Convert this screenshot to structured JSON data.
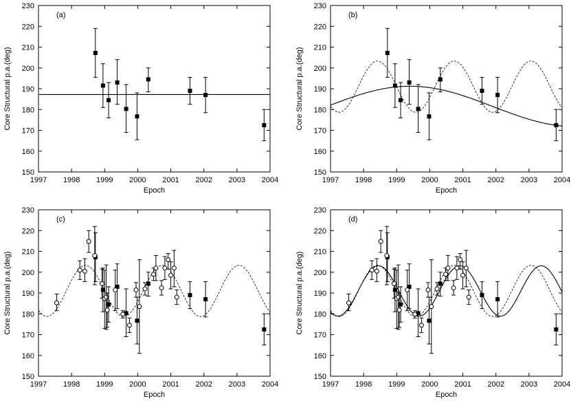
{
  "chart_data": [
    {
      "panel": "(a)",
      "type": "scatter",
      "xlabel": "Epoch",
      "ylabel": "Core Structural p.a.(deg)",
      "xlim": [
        1997,
        2004
      ],
      "ylim": [
        150,
        230
      ],
      "xticks": [
        "1997",
        "1998",
        "1999",
        "2000",
        "2001",
        "2002",
        "2003",
        "2004"
      ],
      "yticks": [
        "150",
        "160",
        "170",
        "180",
        "190",
        "200",
        "210",
        "220",
        "230"
      ],
      "series": [
        {
          "name": "squares",
          "marker": "square",
          "points": [
            {
              "x": 1998.72,
              "y": 207.2,
              "lo": 195.5,
              "hi": 219.0
            },
            {
              "x": 1998.95,
              "y": 191.5,
              "lo": 181.0,
              "hi": 202.0
            },
            {
              "x": 1999.12,
              "y": 184.5,
              "lo": 176.0,
              "hi": 193.0
            },
            {
              "x": 1999.38,
              "y": 193.0,
              "lo": 182.5,
              "hi": 204.0
            },
            {
              "x": 1999.65,
              "y": 180.3,
              "lo": 169.0,
              "hi": 192.0
            },
            {
              "x": 1999.98,
              "y": 176.7,
              "lo": 165.5,
              "hi": 188.0
            },
            {
              "x": 2000.32,
              "y": 194.5,
              "lo": 188.5,
              "hi": 200.0
            },
            {
              "x": 2001.58,
              "y": 189.0,
              "lo": 182.5,
              "hi": 195.5
            },
            {
              "x": 2002.05,
              "y": 187.0,
              "lo": 178.5,
              "hi": 195.5
            },
            {
              "x": 2003.82,
              "y": 172.5,
              "lo": 165.0,
              "hi": 180.0
            }
          ]
        }
      ],
      "curves": [
        {
          "name": "mean",
          "kind": "constant",
          "value": 187.2,
          "style": "solid"
        }
      ]
    },
    {
      "panel": "(b)",
      "type": "scatter",
      "xlabel": "Epoch",
      "ylabel": "Core Structural p.a.(deg)",
      "xlim": [
        1997,
        2004
      ],
      "ylim": [
        150,
        230
      ],
      "xticks": [
        "1997",
        "1998",
        "1999",
        "2000",
        "2001",
        "2002",
        "2003",
        "2004"
      ],
      "yticks": [
        "150",
        "160",
        "170",
        "180",
        "190",
        "200",
        "210",
        "220",
        "230"
      ],
      "series": [
        {
          "name": "squares",
          "marker": "square",
          "points": [
            {
              "x": 1998.72,
              "y": 207.2,
              "lo": 195.5,
              "hi": 219.0
            },
            {
              "x": 1998.95,
              "y": 191.5,
              "lo": 181.0,
              "hi": 202.0
            },
            {
              "x": 1999.12,
              "y": 184.5,
              "lo": 176.0,
              "hi": 193.0
            },
            {
              "x": 1999.38,
              "y": 193.0,
              "lo": 182.5,
              "hi": 204.0
            },
            {
              "x": 1999.65,
              "y": 180.3,
              "lo": 169.0,
              "hi": 192.0
            },
            {
              "x": 1999.98,
              "y": 176.7,
              "lo": 165.5,
              "hi": 188.0
            },
            {
              "x": 2000.32,
              "y": 194.5,
              "lo": 188.5,
              "hi": 200.0
            },
            {
              "x": 2001.58,
              "y": 189.0,
              "lo": 182.5,
              "hi": 195.5
            },
            {
              "x": 2002.05,
              "y": 187.0,
              "lo": 178.5,
              "hi": 195.5
            },
            {
              "x": 2003.82,
              "y": 172.5,
              "lo": 165.0,
              "hi": 180.0
            }
          ]
        }
      ],
      "curves": [
        {
          "name": "long-period-fit",
          "kind": "sine",
          "mean": 181.5,
          "amplitude": 9.7,
          "period": 10.0,
          "peak": 1999.4,
          "style": "solid"
        },
        {
          "name": "short-period-fit",
          "kind": "sine",
          "mean": 191.0,
          "amplitude": 12.3,
          "period": 2.32,
          "peak": 1998.42,
          "style": "dashed"
        }
      ]
    },
    {
      "panel": "(c)",
      "type": "scatter",
      "xlabel": "Epoch",
      "ylabel": "Core Structural p.a.(deg)",
      "xlim": [
        1997,
        2004
      ],
      "ylim": [
        150,
        230
      ],
      "xticks": [
        "1997",
        "1998",
        "1999",
        "2000",
        "2001",
        "2002",
        "2003",
        "2004"
      ],
      "yticks": [
        "150",
        "160",
        "170",
        "180",
        "190",
        "200",
        "210",
        "220",
        "230"
      ],
      "series": [
        {
          "name": "squares",
          "marker": "square",
          "points": [
            {
              "x": 1998.72,
              "y": 207.2,
              "lo": 195.5,
              "hi": 219.0
            },
            {
              "x": 1998.95,
              "y": 191.5,
              "lo": 181.0,
              "hi": 202.0
            },
            {
              "x": 1999.12,
              "y": 184.5,
              "lo": 176.0,
              "hi": 193.0
            },
            {
              "x": 1999.38,
              "y": 193.0,
              "lo": 182.5,
              "hi": 204.0
            },
            {
              "x": 1999.65,
              "y": 180.3,
              "lo": 169.0,
              "hi": 192.0
            },
            {
              "x": 1999.98,
              "y": 176.7,
              "lo": 165.5,
              "hi": 188.0
            },
            {
              "x": 2000.32,
              "y": 194.5,
              "lo": 188.5,
              "hi": 200.0
            },
            {
              "x": 2001.58,
              "y": 189.0,
              "lo": 182.5,
              "hi": 195.5
            },
            {
              "x": 2002.05,
              "y": 187.0,
              "lo": 178.5,
              "hi": 195.5
            },
            {
              "x": 2003.82,
              "y": 172.5,
              "lo": 165.0,
              "hi": 180.0
            }
          ]
        },
        {
          "name": "circles",
          "marker": "circle",
          "points": [
            {
              "x": 1997.55,
              "y": 185.3,
              "lo": 181.5,
              "hi": 189.5
            },
            {
              "x": 1998.25,
              "y": 201.0,
              "lo": 196.5,
              "hi": 205.5
            },
            {
              "x": 1998.4,
              "y": 200.5,
              "lo": 195.5,
              "hi": 206.5
            },
            {
              "x": 1998.52,
              "y": 214.8,
              "lo": 209.5,
              "hi": 220.0
            },
            {
              "x": 1998.7,
              "y": 208.0,
              "lo": 194.0,
              "hi": 222.0
            },
            {
              "x": 1998.92,
              "y": 194.5,
              "lo": 187.5,
              "hi": 201.5
            },
            {
              "x": 1999.0,
              "y": 187.3,
              "lo": 173.0,
              "hi": 201.0
            },
            {
              "x": 1999.05,
              "y": 188.0,
              "lo": 172.5,
              "hi": 203.5
            },
            {
              "x": 1999.08,
              "y": 181.8,
              "lo": 173.5,
              "hi": 190.0
            },
            {
              "x": 1999.32,
              "y": 191.5,
              "lo": 181.5,
              "hi": 201.0
            },
            {
              "x": 1999.55,
              "y": 179.8,
              "lo": 178.0,
              "hi": 181.5
            },
            {
              "x": 1999.75,
              "y": 174.5,
              "lo": 171.0,
              "hi": 178.0
            },
            {
              "x": 1999.95,
              "y": 191.5,
              "lo": 188.0,
              "hi": 195.0
            },
            {
              "x": 2000.05,
              "y": 183.5,
              "lo": 161.0,
              "hi": 206.0
            },
            {
              "x": 2000.22,
              "y": 192.0,
              "lo": 189.0,
              "hi": 195.0
            },
            {
              "x": 2000.48,
              "y": 199.0,
              "lo": 196.0,
              "hi": 202.0
            },
            {
              "x": 2000.55,
              "y": 202.0,
              "lo": 196.0,
              "hi": 208.0
            },
            {
              "x": 2000.72,
              "y": 192.5,
              "lo": 189.0,
              "hi": 196.0
            },
            {
              "x": 2000.82,
              "y": 202.0,
              "lo": 196.5,
              "hi": 207.5
            },
            {
              "x": 2000.92,
              "y": 206.0,
              "lo": 201.5,
              "hi": 209.0
            },
            {
              "x": 2001.0,
              "y": 198.5,
              "lo": 192.0,
              "hi": 205.0
            },
            {
              "x": 2001.1,
              "y": 202.0,
              "lo": 193.0,
              "hi": 210.5
            },
            {
              "x": 2001.18,
              "y": 188.0,
              "lo": 184.5,
              "hi": 191.5
            }
          ]
        }
      ],
      "curves": [
        {
          "name": "short-period-fit",
          "kind": "sine",
          "mean": 191.0,
          "amplitude": 12.3,
          "period": 2.32,
          "peak": 1998.42,
          "style": "dashed"
        }
      ]
    },
    {
      "panel": "(d)",
      "type": "scatter",
      "xlabel": "Epoch",
      "ylabel": "Core Structural p.a.(deg)",
      "xlim": [
        1997,
        2004
      ],
      "ylim": [
        150,
        230
      ],
      "xticks": [
        "1997",
        "1998",
        "1999",
        "2000",
        "2001",
        "2002",
        "2003",
        "2004"
      ],
      "yticks": [
        "150",
        "160",
        "170",
        "180",
        "190",
        "200",
        "210",
        "220",
        "230"
      ],
      "series": [
        {
          "name": "squares",
          "marker": "square",
          "points": [
            {
              "x": 1998.72,
              "y": 207.2,
              "lo": 195.5,
              "hi": 219.0
            },
            {
              "x": 1998.95,
              "y": 191.5,
              "lo": 181.0,
              "hi": 202.0
            },
            {
              "x": 1999.12,
              "y": 184.5,
              "lo": 176.0,
              "hi": 193.0
            },
            {
              "x": 1999.38,
              "y": 193.0,
              "lo": 182.5,
              "hi": 204.0
            },
            {
              "x": 1999.65,
              "y": 180.3,
              "lo": 169.0,
              "hi": 192.0
            },
            {
              "x": 1999.98,
              "y": 176.7,
              "lo": 165.5,
              "hi": 188.0
            },
            {
              "x": 2000.32,
              "y": 194.5,
              "lo": 188.5,
              "hi": 200.0
            },
            {
              "x": 2001.58,
              "y": 189.0,
              "lo": 182.5,
              "hi": 195.5
            },
            {
              "x": 2002.05,
              "y": 187.0,
              "lo": 178.5,
              "hi": 195.5
            },
            {
              "x": 2003.82,
              "y": 172.5,
              "lo": 165.0,
              "hi": 180.0
            }
          ]
        },
        {
          "name": "circles",
          "marker": "circle",
          "points": [
            {
              "x": 1997.55,
              "y": 185.3,
              "lo": 181.5,
              "hi": 189.5
            },
            {
              "x": 1998.25,
              "y": 201.0,
              "lo": 196.5,
              "hi": 205.5
            },
            {
              "x": 1998.4,
              "y": 200.5,
              "lo": 195.5,
              "hi": 206.5
            },
            {
              "x": 1998.52,
              "y": 214.8,
              "lo": 209.5,
              "hi": 220.0
            },
            {
              "x": 1998.7,
              "y": 208.0,
              "lo": 194.0,
              "hi": 222.0
            },
            {
              "x": 1998.92,
              "y": 194.5,
              "lo": 187.5,
              "hi": 201.5
            },
            {
              "x": 1999.0,
              "y": 187.3,
              "lo": 173.0,
              "hi": 201.0
            },
            {
              "x": 1999.05,
              "y": 188.0,
              "lo": 172.5,
              "hi": 203.5
            },
            {
              "x": 1999.08,
              "y": 181.8,
              "lo": 173.5,
              "hi": 190.0
            },
            {
              "x": 1999.32,
              "y": 191.5,
              "lo": 181.5,
              "hi": 201.0
            },
            {
              "x": 1999.55,
              "y": 179.8,
              "lo": 178.0,
              "hi": 181.5
            },
            {
              "x": 1999.75,
              "y": 174.5,
              "lo": 171.0,
              "hi": 178.0
            },
            {
              "x": 1999.95,
              "y": 191.5,
              "lo": 188.0,
              "hi": 195.0
            },
            {
              "x": 2000.05,
              "y": 183.5,
              "lo": 161.0,
              "hi": 206.0
            },
            {
              "x": 2000.22,
              "y": 192.0,
              "lo": 189.0,
              "hi": 195.0
            },
            {
              "x": 2000.48,
              "y": 199.0,
              "lo": 196.0,
              "hi": 202.0
            },
            {
              "x": 2000.55,
              "y": 202.0,
              "lo": 196.0,
              "hi": 208.0
            },
            {
              "x": 2000.72,
              "y": 192.5,
              "lo": 189.0,
              "hi": 196.0
            },
            {
              "x": 2000.82,
              "y": 202.0,
              "lo": 196.5,
              "hi": 207.5
            },
            {
              "x": 2000.92,
              "y": 206.0,
              "lo": 201.5,
              "hi": 209.0
            },
            {
              "x": 2001.0,
              "y": 198.5,
              "lo": 192.0,
              "hi": 205.0
            },
            {
              "x": 2001.1,
              "y": 202.0,
              "lo": 193.0,
              "hi": 210.5
            },
            {
              "x": 2001.18,
              "y": 188.0,
              "lo": 184.5,
              "hi": 191.5
            }
          ]
        }
      ],
      "curves": [
        {
          "name": "short-period-fit",
          "kind": "sine",
          "mean": 191.0,
          "amplitude": 12.3,
          "period": 2.32,
          "peak": 1998.42,
          "style": "dashed"
        },
        {
          "name": "refined-fit",
          "kind": "sine",
          "mean": 191.0,
          "amplitude": 12.1,
          "period": 2.46,
          "peak": 1998.45,
          "style": "solid"
        }
      ]
    }
  ]
}
